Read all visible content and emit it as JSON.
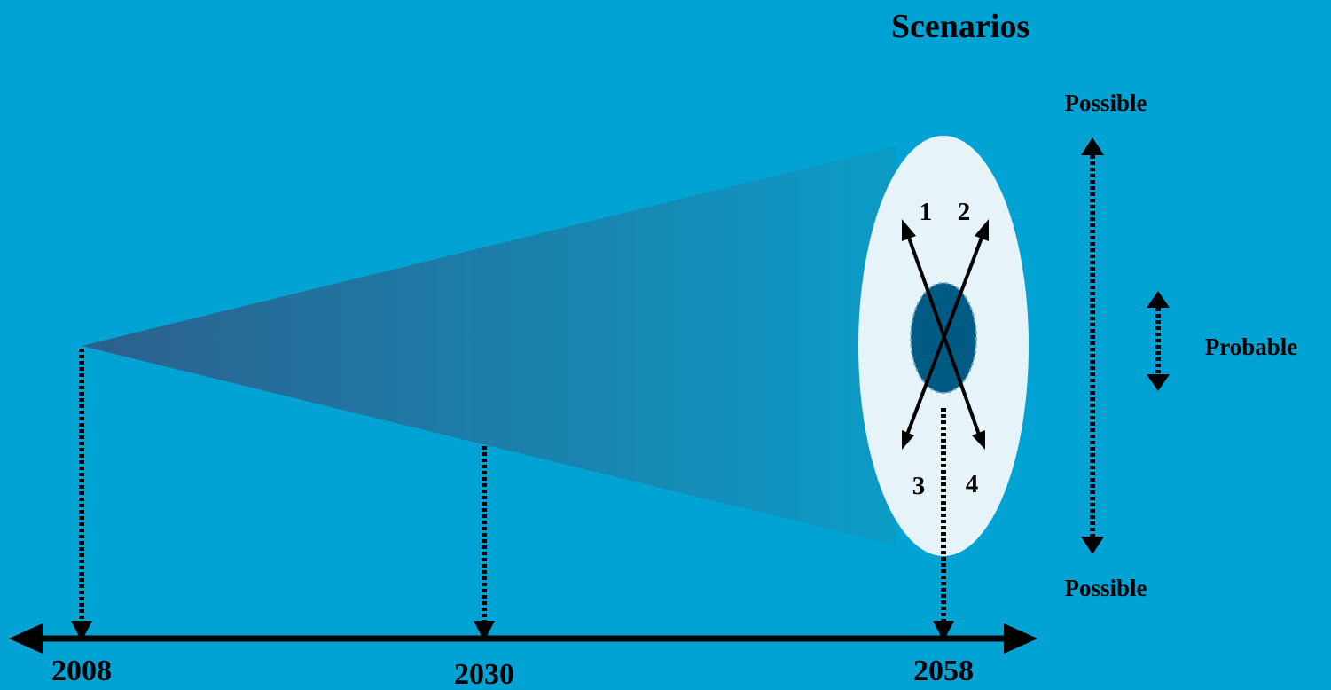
{
  "title": "Scenarios",
  "labels": {
    "possible_top": "Possible",
    "possible_bottom": "Possible",
    "probable": "Probable"
  },
  "timeline": {
    "years": [
      "2008",
      "2030",
      "2058"
    ]
  },
  "scenarios": [
    "1",
    "2",
    "3",
    "4"
  ],
  "colors": {
    "background": "#00a3d3",
    "cone_dark": "#2d5f8c",
    "cone_light": "#0b9cc6",
    "possible_ellipse": "#e6f3f9",
    "probable_ellipse": "#005b84",
    "ink": "#000000"
  }
}
